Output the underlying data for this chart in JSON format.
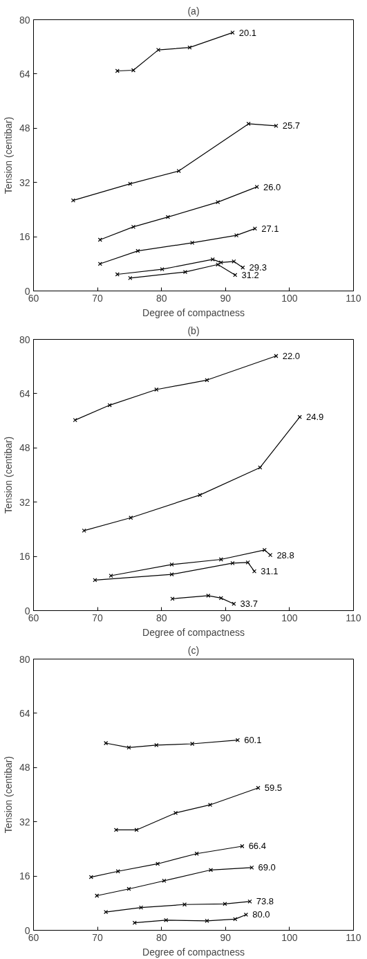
{
  "chart_data": [
    {
      "type": "line",
      "title": "(a)",
      "xlabel": "Degree of compactness",
      "ylabel": "Tension (centibar)",
      "xlim": [
        60,
        110
      ],
      "ylim": [
        0,
        80
      ],
      "xticks": [
        60,
        70,
        80,
        90,
        100,
        110
      ],
      "yticks": [
        0,
        16,
        32,
        48,
        64,
        80
      ],
      "grid": false,
      "legend": false,
      "marker": "cross",
      "line_style": "solid",
      "series": [
        {
          "name": "20.1",
          "color": "#000000",
          "x": [
            73.1,
            75.6,
            79.5,
            84.4,
            91.1
          ],
          "values": [
            64.9,
            65.1,
            71.1,
            71.8,
            76.2
          ]
        },
        {
          "name": "25.7",
          "color": "#000000",
          "x": [
            66.2,
            75.1,
            82.7,
            93.6,
            97.9
          ],
          "values": [
            26.7,
            31.6,
            35.4,
            49.3,
            48.7
          ]
        },
        {
          "name": "26.0",
          "color": "#000000",
          "x": [
            70.4,
            75.6,
            81,
            88.8,
            94.9
          ],
          "values": [
            15.1,
            18.9,
            21.8,
            26.2,
            30.7
          ]
        },
        {
          "name": "27.1",
          "color": "#000000",
          "x": [
            70.4,
            76.3,
            84.8,
            91.7,
            94.6
          ],
          "values": [
            8,
            11.8,
            14.2,
            16.4,
            18.4
          ]
        },
        {
          "name": "29.3",
          "color": "#000000",
          "x": [
            73.1,
            80.1,
            88,
            89.3,
            91.3,
            92.7
          ],
          "values": [
            4.9,
            6.4,
            9.3,
            8.4,
            8.7,
            6.9
          ]
        },
        {
          "name": "31.2",
          "color": "#000000",
          "x": [
            75.1,
            83.7,
            88.8,
            91.5
          ],
          "values": [
            3.8,
            5.6,
            7.8,
            4.7
          ]
        }
      ]
    },
    {
      "type": "line",
      "title": "(b)",
      "xlabel": "Degree of compactness",
      "ylabel": "Tension (centibar)",
      "xlim": [
        60,
        110
      ],
      "ylim": [
        0,
        80
      ],
      "xticks": [
        60,
        70,
        80,
        90,
        100,
        110
      ],
      "yticks": [
        0,
        16,
        32,
        48,
        64,
        80
      ],
      "grid": false,
      "legend": false,
      "marker": "cross",
      "line_style": "solid",
      "series": [
        {
          "name": "22.0",
          "color": "#000000",
          "x": [
            66.5,
            71.9,
            79.2,
            87.1,
            97.9
          ],
          "values": [
            56.2,
            60.6,
            65.2,
            68,
            75.1
          ]
        },
        {
          "name": "24.9",
          "color": "#000000",
          "x": [
            67.9,
            75.2,
            86,
            95.4,
            101.6
          ],
          "values": [
            23.6,
            27.4,
            34.1,
            42.2,
            57.1
          ]
        },
        {
          "name": "28.8",
          "color": "#000000",
          "x": [
            72.1,
            81.6,
            89.3,
            96.1,
            97
          ],
          "values": [
            10.3,
            13.6,
            15.1,
            17.9,
            16.4
          ]
        },
        {
          "name": "31.1",
          "color": "#000000",
          "x": [
            69.6,
            81.6,
            91.1,
            93.5,
            94.5
          ],
          "values": [
            9,
            10.7,
            14,
            14.2,
            11.6
          ]
        },
        {
          "name": "33.7",
          "color": "#000000",
          "x": [
            81.7,
            87.3,
            89.3,
            91.3
          ],
          "values": [
            3.5,
            4.4,
            3.7,
            2
          ]
        }
      ]
    },
    {
      "type": "line",
      "title": "(c)",
      "xlabel": "Degree of compactness",
      "ylabel": "Tension (centibar)",
      "xlim": [
        60,
        110
      ],
      "ylim": [
        0,
        80
      ],
      "xticks": [
        60,
        70,
        80,
        90,
        100,
        110
      ],
      "yticks": [
        0,
        16,
        32,
        48,
        64,
        80
      ],
      "grid": false,
      "legend": false,
      "marker": "cross",
      "line_style": "solid",
      "series": [
        {
          "name": "60.1",
          "color": "#000000",
          "x": [
            71.3,
            74.9,
            79.2,
            84.8,
            91.9
          ],
          "values": [
            55.2,
            53.9,
            54.6,
            55,
            56.1
          ]
        },
        {
          "name": "59.5",
          "color": "#000000",
          "x": [
            72.9,
            76.1,
            82.2,
            87.6,
            95.1
          ],
          "values": [
            29.6,
            29.6,
            34.6,
            37,
            42
          ]
        },
        {
          "name": "66.4",
          "color": "#000000",
          "x": [
            69,
            73.2,
            79.4,
            85.5,
            92.6
          ],
          "values": [
            15.7,
            17.4,
            19.6,
            22.6,
            24.8
          ]
        },
        {
          "name": "69.0",
          "color": "#000000",
          "x": [
            69.9,
            74.9,
            80.4,
            87.7,
            94.1
          ],
          "values": [
            10.2,
            12.2,
            14.6,
            17.8,
            18.5
          ]
        },
        {
          "name": "73.8",
          "color": "#000000",
          "x": [
            71.3,
            76.8,
            83.6,
            89.9,
            93.8
          ],
          "values": [
            5.4,
            6.7,
            7.6,
            7.8,
            8.5
          ]
        },
        {
          "name": "80.0",
          "color": "#000000",
          "x": [
            75.8,
            80.7,
            87.1,
            91.5,
            93.2
          ],
          "values": [
            2.2,
            3,
            2.8,
            3.3,
            4.6
          ]
        }
      ]
    }
  ]
}
